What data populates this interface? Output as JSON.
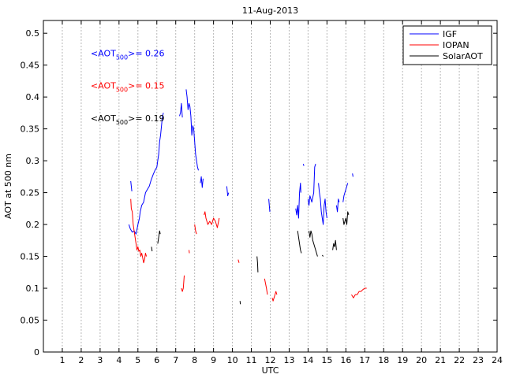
{
  "chart_data": {
    "type": "line",
    "title": "11-Aug-2013",
    "xlabel": "UTC",
    "ylabel": "AOT at 500 nm",
    "xlim": [
      0,
      24
    ],
    "ylim": [
      0,
      0.52
    ],
    "xticks": [
      1,
      2,
      3,
      4,
      5,
      6,
      7,
      8,
      9,
      10,
      11,
      12,
      13,
      14,
      15,
      16,
      17,
      18,
      19,
      20,
      21,
      22,
      23,
      24
    ],
    "yticks": [
      0,
      0.05,
      0.1,
      0.15,
      0.2,
      0.25,
      0.3,
      0.35,
      0.4,
      0.45,
      0.5
    ],
    "grid": "vertical dashed",
    "legend_position": "top-right",
    "annotations": [
      {
        "prefix": "<AOT",
        "sub": "500",
        "suffix": ">= 0.26",
        "color": "#0000ff",
        "at": [
          2.5,
          0.464
        ]
      },
      {
        "prefix": "<AOT",
        "sub": "500",
        "suffix": ">= 0.15",
        "color": "#ff0000",
        "at": [
          2.5,
          0.413
        ]
      },
      {
        "prefix": "<AOT",
        "sub": "500",
        "suffix": ">= 0.19",
        "color": "#000000",
        "at": [
          2.5,
          0.362
        ]
      }
    ],
    "series": [
      {
        "name": "IGF",
        "color": "#0000ff",
        "segments": [
          [
            [
              4.62,
              0.268
            ],
            [
              4.65,
              0.26
            ],
            [
              4.68,
              0.252
            ]
          ],
          [
            [
              4.52,
              0.2
            ],
            [
              4.6,
              0.193
            ],
            [
              4.7,
              0.188
            ],
            [
              4.8,
              0.19
            ],
            [
              4.9,
              0.185
            ],
            [
              5.0,
              0.2
            ],
            [
              5.08,
              0.21
            ],
            [
              5.12,
              0.22
            ],
            [
              5.2,
              0.23
            ],
            [
              5.3,
              0.235
            ],
            [
              5.4,
              0.25
            ],
            [
              5.5,
              0.255
            ],
            [
              5.6,
              0.26
            ],
            [
              5.7,
              0.27
            ],
            [
              5.8,
              0.278
            ],
            [
              5.9,
              0.285
            ],
            [
              6.0,
              0.29
            ],
            [
              6.05,
              0.3
            ],
            [
              6.1,
              0.31
            ],
            [
              6.15,
              0.33
            ],
            [
              6.2,
              0.34
            ],
            [
              6.3,
              0.37
            ],
            [
              6.35,
              0.375
            ]
          ],
          [
            [
              7.2,
              0.37
            ],
            [
              7.25,
              0.375
            ],
            [
              7.3,
              0.39
            ],
            [
              7.35,
              0.368
            ]
          ],
          [
            [
              7.55,
              0.412
            ],
            [
              7.6,
              0.4
            ],
            [
              7.65,
              0.38
            ],
            [
              7.7,
              0.39
            ],
            [
              7.75,
              0.385
            ],
            [
              7.8,
              0.37
            ],
            [
              7.85,
              0.34
            ],
            [
              7.9,
              0.355
            ],
            [
              7.95,
              0.35
            ],
            [
              8.0,
              0.33
            ],
            [
              8.05,
              0.31
            ],
            [
              8.1,
              0.3
            ],
            [
              8.15,
              0.29
            ],
            [
              8.2,
              0.285
            ]
          ],
          [
            [
              8.3,
              0.265
            ],
            [
              8.35,
              0.275
            ],
            [
              8.4,
              0.258
            ],
            [
              8.45,
              0.272
            ]
          ],
          [
            [
              9.7,
              0.26
            ],
            [
              9.75,
              0.245
            ],
            [
              9.8,
              0.25
            ]
          ],
          [
            [
              11.92,
              0.24
            ],
            [
              11.95,
              0.23
            ],
            [
              11.98,
              0.22
            ]
          ],
          [
            [
              13.35,
              0.225
            ],
            [
              13.4,
              0.215
            ],
            [
              13.45,
              0.23
            ],
            [
              13.5,
              0.21
            ],
            [
              13.55,
              0.25
            ],
            [
              13.6,
              0.265
            ],
            [
              13.62,
              0.25
            ]
          ],
          [
            [
              13.75,
              0.295
            ],
            [
              13.78,
              0.292
            ]
          ],
          [
            [
              14.0,
              0.24
            ],
            [
              14.05,
              0.23
            ],
            [
              14.1,
              0.245
            ],
            [
              14.2,
              0.235
            ],
            [
              14.3,
              0.25
            ],
            [
              14.35,
              0.29
            ],
            [
              14.4,
              0.295
            ]
          ],
          [
            [
              14.55,
              0.265
            ],
            [
              14.6,
              0.25
            ],
            [
              14.65,
              0.24
            ],
            [
              14.7,
              0.22
            ],
            [
              14.75,
              0.21
            ],
            [
              14.8,
              0.2
            ],
            [
              14.85,
              0.23
            ],
            [
              14.9,
              0.24
            ],
            [
              14.95,
              0.22
            ],
            [
              15.0,
              0.21
            ]
          ],
          [
            [
              15.5,
              0.23
            ],
            [
              15.55,
              0.22
            ],
            [
              15.6,
              0.24
            ],
            [
              15.65,
              0.235
            ]
          ],
          [
            [
              15.85,
              0.235
            ],
            [
              15.9,
              0.245
            ],
            [
              16.0,
              0.255
            ],
            [
              16.05,
              0.26
            ],
            [
              16.1,
              0.265
            ]
          ],
          [
            [
              16.35,
              0.28
            ],
            [
              16.38,
              0.275
            ]
          ]
        ]
      },
      {
        "name": "IOPAN",
        "color": "#ff0000",
        "segments": [
          [
            [
              4.62,
              0.24
            ],
            [
              4.65,
              0.225
            ],
            [
              4.7,
              0.22
            ],
            [
              4.75,
              0.2
            ],
            [
              4.8,
              0.19
            ],
            [
              4.85,
              0.18
            ],
            [
              4.9,
              0.17
            ],
            [
              4.95,
              0.16
            ],
            [
              5.0,
              0.165
            ],
            [
              5.05,
              0.158
            ],
            [
              5.1,
              0.16
            ],
            [
              5.15,
              0.15
            ],
            [
              5.2,
              0.155
            ],
            [
              5.25,
              0.148
            ],
            [
              5.3,
              0.14
            ],
            [
              5.35,
              0.145
            ],
            [
              5.4,
              0.155
            ],
            [
              5.45,
              0.15
            ]
          ],
          [
            [
              7.3,
              0.1
            ],
            [
              7.35,
              0.095
            ],
            [
              7.4,
              0.1
            ],
            [
              7.45,
              0.12
            ]
          ],
          [
            [
              7.7,
              0.16
            ],
            [
              7.72,
              0.155
            ]
          ],
          [
            [
              8.0,
              0.2
            ],
            [
              8.05,
              0.19
            ],
            [
              8.1,
              0.185
            ]
          ],
          [
            [
              8.5,
              0.215
            ],
            [
              8.55,
              0.22
            ],
            [
              8.6,
              0.21
            ],
            [
              8.7,
              0.2
            ],
            [
              8.8,
              0.205
            ],
            [
              8.9,
              0.2
            ],
            [
              9.0,
              0.21
            ],
            [
              9.1,
              0.205
            ],
            [
              9.2,
              0.195
            ],
            [
              9.3,
              0.21
            ]
          ],
          [
            [
              10.3,
              0.145
            ],
            [
              10.35,
              0.14
            ]
          ],
          [
            [
              11.7,
              0.115
            ],
            [
              11.8,
              0.1
            ],
            [
              11.85,
              0.09
            ]
          ],
          [
            [
              12.1,
              0.085
            ],
            [
              12.15,
              0.08
            ],
            [
              12.2,
              0.085
            ],
            [
              12.25,
              0.09
            ],
            [
              12.3,
              0.095
            ],
            [
              12.35,
              0.09
            ]
          ],
          [
            [
              16.3,
              0.09
            ],
            [
              16.4,
              0.085
            ],
            [
              16.5,
              0.09
            ],
            [
              16.6,
              0.09
            ],
            [
              16.7,
              0.095
            ],
            [
              16.8,
              0.095
            ],
            [
              16.9,
              0.098
            ],
            [
              17.0,
              0.1
            ],
            [
              17.1,
              0.1
            ]
          ]
        ]
      },
      {
        "name": "SolarAOT",
        "color": "#000000",
        "segments": [
          [
            [
              5.72,
              0.165
            ],
            [
              5.75,
              0.158
            ]
          ],
          [
            [
              6.05,
              0.17
            ],
            [
              6.1,
              0.18
            ],
            [
              6.15,
              0.19
            ],
            [
              6.18,
              0.185
            ]
          ],
          [
            [
              10.4,
              0.08
            ],
            [
              10.42,
              0.075
            ]
          ],
          [
            [
              11.3,
              0.15
            ],
            [
              11.33,
              0.14
            ],
            [
              11.35,
              0.125
            ]
          ],
          [
            [
              13.45,
              0.19
            ],
            [
              13.5,
              0.18
            ],
            [
              13.55,
              0.17
            ],
            [
              13.6,
              0.16
            ],
            [
              13.65,
              0.155
            ]
          ],
          [
            [
              14.05,
              0.19
            ],
            [
              14.1,
              0.18
            ],
            [
              14.15,
              0.19
            ],
            [
              14.2,
              0.185
            ],
            [
              14.25,
              0.175
            ],
            [
              14.3,
              0.17
            ],
            [
              14.35,
              0.165
            ],
            [
              14.4,
              0.16
            ],
            [
              14.45,
              0.155
            ],
            [
              14.5,
              0.15
            ]
          ],
          [
            [
              14.75,
              0.152
            ],
            [
              14.8,
              0.15
            ]
          ],
          [
            [
              15.3,
              0.16
            ],
            [
              15.35,
              0.17
            ],
            [
              15.4,
              0.165
            ],
            [
              15.45,
              0.175
            ],
            [
              15.5,
              0.16
            ]
          ],
          [
            [
              15.85,
              0.21
            ],
            [
              15.9,
              0.2
            ],
            [
              16.0,
              0.21
            ],
            [
              16.05,
              0.2
            ],
            [
              16.1,
              0.22
            ],
            [
              16.15,
              0.215
            ]
          ]
        ]
      }
    ]
  }
}
